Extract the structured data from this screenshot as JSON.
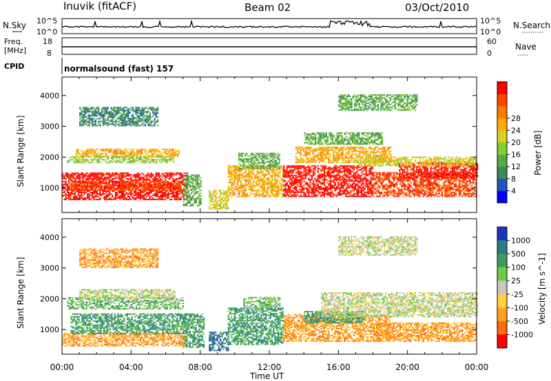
{
  "header": {
    "station": "Inuvik (fitACF)",
    "beam": "Beam 02",
    "date": "03/Oct/2010"
  },
  "noise_panel": {
    "left_label": "N.Sky",
    "left_ticks": [
      "10^5",
      "10^0"
    ],
    "right_label": "N.Search",
    "right_ticks": [
      "10^5",
      "10^0"
    ]
  },
  "freq_panel": {
    "left_label_1": "Freq.",
    "left_label_2": "[MHz]",
    "left_ticks": [
      "18",
      "8"
    ],
    "right_label": "Nave",
    "right_ticks": [
      "60",
      "0"
    ]
  },
  "cpid": {
    "label": "CPID",
    "program": "normalsound (fast) 157"
  },
  "chart_data": [
    {
      "type": "heatmap",
      "name": "power",
      "xlabel": "",
      "ylabel": "Slant Range [km]",
      "x_ticks": [
        "00:00",
        "04:00",
        "08:00",
        "12:00",
        "16:00",
        "20:00",
        "00:00"
      ],
      "xlim_hours": [
        0,
        24
      ],
      "ylim": [
        200,
        4600
      ],
      "y_ticks": [
        1000,
        2000,
        3000,
        4000
      ],
      "colorbar": {
        "label": "Power [dB]",
        "ticks": [
          "4",
          "8",
          "12",
          "16",
          "20",
          "24",
          "28"
        ],
        "colors": [
          "#0000ff",
          "#2255bb",
          "#3a8a55",
          "#55aa44",
          "#88cc33",
          "#d8d020",
          "#ffaa00",
          "#ff7a00",
          "#ff4400",
          "#ff0000"
        ]
      },
      "echo_regions": [
        {
          "x0": 0.0,
          "x1": 7.2,
          "r0": 600,
          "r1": 1500,
          "level": 9
        },
        {
          "x0": 0.5,
          "x1": 6.8,
          "r0": 900,
          "r1": 1200,
          "level": 8
        },
        {
          "x0": 0.8,
          "x1": 6.8,
          "r0": 2000,
          "r1": 2250,
          "level": 6
        },
        {
          "x0": 0.3,
          "x1": 6.5,
          "r0": 1800,
          "r1": 2000,
          "level": 4
        },
        {
          "x0": 7.0,
          "x1": 8.0,
          "r0": 400,
          "r1": 1400,
          "level": 3
        },
        {
          "x0": 8.5,
          "x1": 9.6,
          "r0": 300,
          "r1": 900,
          "level": 5
        },
        {
          "x0": 9.6,
          "x1": 12.8,
          "r0": 700,
          "r1": 1700,
          "level": 6
        },
        {
          "x0": 10.2,
          "x1": 12.6,
          "r0": 1600,
          "r1": 2100,
          "level": 3
        },
        {
          "x0": 12.8,
          "x1": 18.0,
          "r0": 700,
          "r1": 1700,
          "level": 9
        },
        {
          "x0": 13.5,
          "x1": 19.0,
          "r0": 1800,
          "r1": 2300,
          "level": 6
        },
        {
          "x0": 14.0,
          "x1": 18.5,
          "r0": 2400,
          "r1": 2800,
          "level": 3
        },
        {
          "x0": 16.0,
          "x1": 20.5,
          "r0": 3500,
          "r1": 4000,
          "level": 3
        },
        {
          "x0": 18.0,
          "x1": 24.0,
          "r0": 700,
          "r1": 1500,
          "level": 8
        },
        {
          "x0": 19.5,
          "x1": 24.0,
          "r0": 1300,
          "r1": 1800,
          "level": 9
        },
        {
          "x0": 17.0,
          "x1": 24.0,
          "r0": 1700,
          "r1": 2000,
          "level": 5
        },
        {
          "x0": 1.0,
          "x1": 5.5,
          "r0": 3000,
          "r1": 3600,
          "level": 2
        }
      ]
    },
    {
      "type": "heatmap",
      "name": "velocity",
      "xlabel": "Time UT",
      "ylabel": "Slant Range [km]",
      "x_ticks": [
        "00:00",
        "04:00",
        "08:00",
        "12:00",
        "16:00",
        "20:00",
        "00:00"
      ],
      "xlim_hours": [
        0,
        24
      ],
      "ylim": [
        200,
        4600
      ],
      "y_ticks": [
        1000,
        2000,
        3000,
        4000
      ],
      "colorbar": {
        "label": "Velocity [m s^-1]",
        "ticks": [
          "1000",
          "500",
          "100",
          "25",
          "-25",
          "-100",
          "-500",
          "-1000"
        ],
        "colors": [
          "#1838b8",
          "#2a7a8a",
          "#3a9a60",
          "#6ccc40",
          "#c8c8c0",
          "#ffd040",
          "#ffa020",
          "#ff6a10",
          "#ff0000"
        ]
      },
      "echo_regions": [
        {
          "x0": 0.0,
          "x1": 7.2,
          "r0": 450,
          "r1": 900,
          "level": 6
        },
        {
          "x0": 0.5,
          "x1": 7.2,
          "r0": 850,
          "r1": 1500,
          "level": 2
        },
        {
          "x0": 0.3,
          "x1": 7.0,
          "r0": 1650,
          "r1": 2050,
          "level": 3
        },
        {
          "x0": 1.0,
          "x1": 6.5,
          "r0": 2000,
          "r1": 2300,
          "level": 4
        },
        {
          "x0": 7.0,
          "x1": 8.2,
          "r0": 400,
          "r1": 1500,
          "level": 2
        },
        {
          "x0": 8.5,
          "x1": 9.6,
          "r0": 300,
          "r1": 900,
          "level": 1
        },
        {
          "x0": 9.6,
          "x1": 12.8,
          "r0": 500,
          "r1": 1700,
          "level": 2
        },
        {
          "x0": 10.5,
          "x1": 12.6,
          "r0": 1700,
          "r1": 2050,
          "level": 3
        },
        {
          "x0": 12.8,
          "x1": 19.0,
          "r0": 600,
          "r1": 1500,
          "level": 6
        },
        {
          "x0": 14.0,
          "x1": 17.5,
          "r0": 1200,
          "r1": 1600,
          "level": 2
        },
        {
          "x0": 18.0,
          "x1": 24.0,
          "r0": 600,
          "r1": 1200,
          "level": 6
        },
        {
          "x0": 15.0,
          "x1": 24.0,
          "r0": 1400,
          "r1": 2200,
          "level": 4
        },
        {
          "x0": 16.0,
          "x1": 20.5,
          "r0": 3400,
          "r1": 4000,
          "level": 4
        },
        {
          "x0": 1.0,
          "x1": 5.5,
          "r0": 3000,
          "r1": 3600,
          "level": 6
        }
      ]
    }
  ]
}
